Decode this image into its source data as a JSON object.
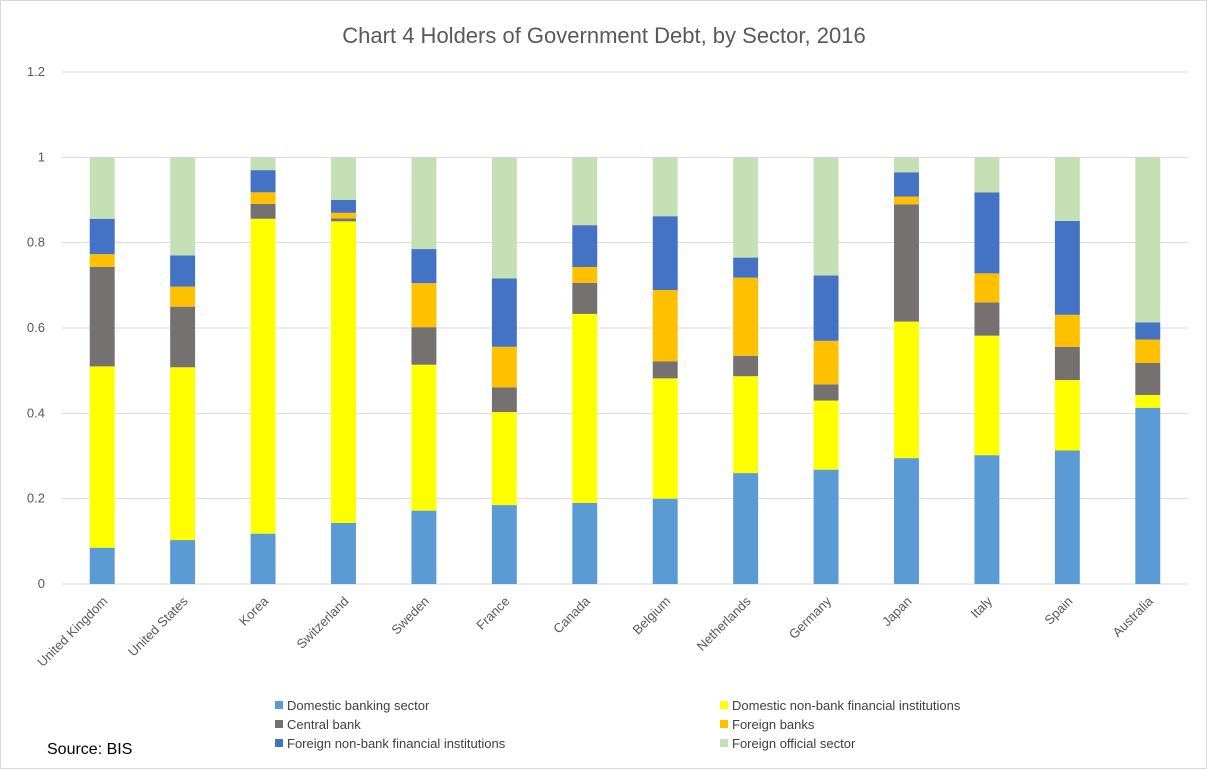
{
  "chart_data": {
    "type": "bar",
    "stacked": true,
    "title": "Chart 4 Holders of Government Debt, by Sector, 2016",
    "xlabel": "",
    "ylabel": "",
    "ylim": [
      0,
      1.2
    ],
    "yticks": [
      "0",
      "0.2",
      "0.4",
      "0.6",
      "0.8",
      "1",
      "1.2"
    ],
    "grid": true,
    "legend_position": "bottom",
    "categories": [
      "United Kingdom",
      "United States",
      "Korea",
      "Switzerland",
      "Sweden",
      "France",
      "Canada",
      "Belgium",
      "Netherlands",
      "Germany",
      "Japan",
      "Italy",
      "Spain",
      "Australia"
    ],
    "series": [
      {
        "name": "Domestic banking sector",
        "color": "#5b9bd5",
        "values": [
          0.085,
          0.103,
          0.118,
          0.143,
          0.172,
          0.185,
          0.19,
          0.2,
          0.26,
          0.268,
          0.295,
          0.302,
          0.313,
          0.413
        ]
      },
      {
        "name": "Domestic non-bank financial institutions",
        "color": "#ffff00",
        "values": [
          0.425,
          0.405,
          0.738,
          0.707,
          0.342,
          0.218,
          0.443,
          0.282,
          0.227,
          0.162,
          0.32,
          0.28,
          0.165,
          0.03
        ]
      },
      {
        "name": "Central bank",
        "color": "#767171",
        "values": [
          0.233,
          0.142,
          0.035,
          0.007,
          0.088,
          0.058,
          0.073,
          0.04,
          0.048,
          0.038,
          0.275,
          0.078,
          0.078,
          0.075
        ]
      },
      {
        "name": "Foreign banks",
        "color": "#ffc000",
        "values": [
          0.03,
          0.047,
          0.027,
          0.013,
          0.103,
          0.095,
          0.037,
          0.167,
          0.183,
          0.102,
          0.018,
          0.068,
          0.075,
          0.055
        ]
      },
      {
        "name": "Foreign non-bank financial institutions",
        "color": "#4472c4",
        "values": [
          0.083,
          0.073,
          0.052,
          0.03,
          0.08,
          0.16,
          0.098,
          0.173,
          0.047,
          0.153,
          0.057,
          0.19,
          0.22,
          0.04
        ]
      },
      {
        "name": "Foreign official sector",
        "color": "#c5e0b4",
        "values": [
          0.144,
          0.23,
          0.03,
          0.1,
          0.215,
          0.284,
          0.159,
          0.138,
          0.235,
          0.277,
          0.035,
          0.082,
          0.149,
          0.387
        ]
      }
    ],
    "source": "Source: BIS"
  }
}
